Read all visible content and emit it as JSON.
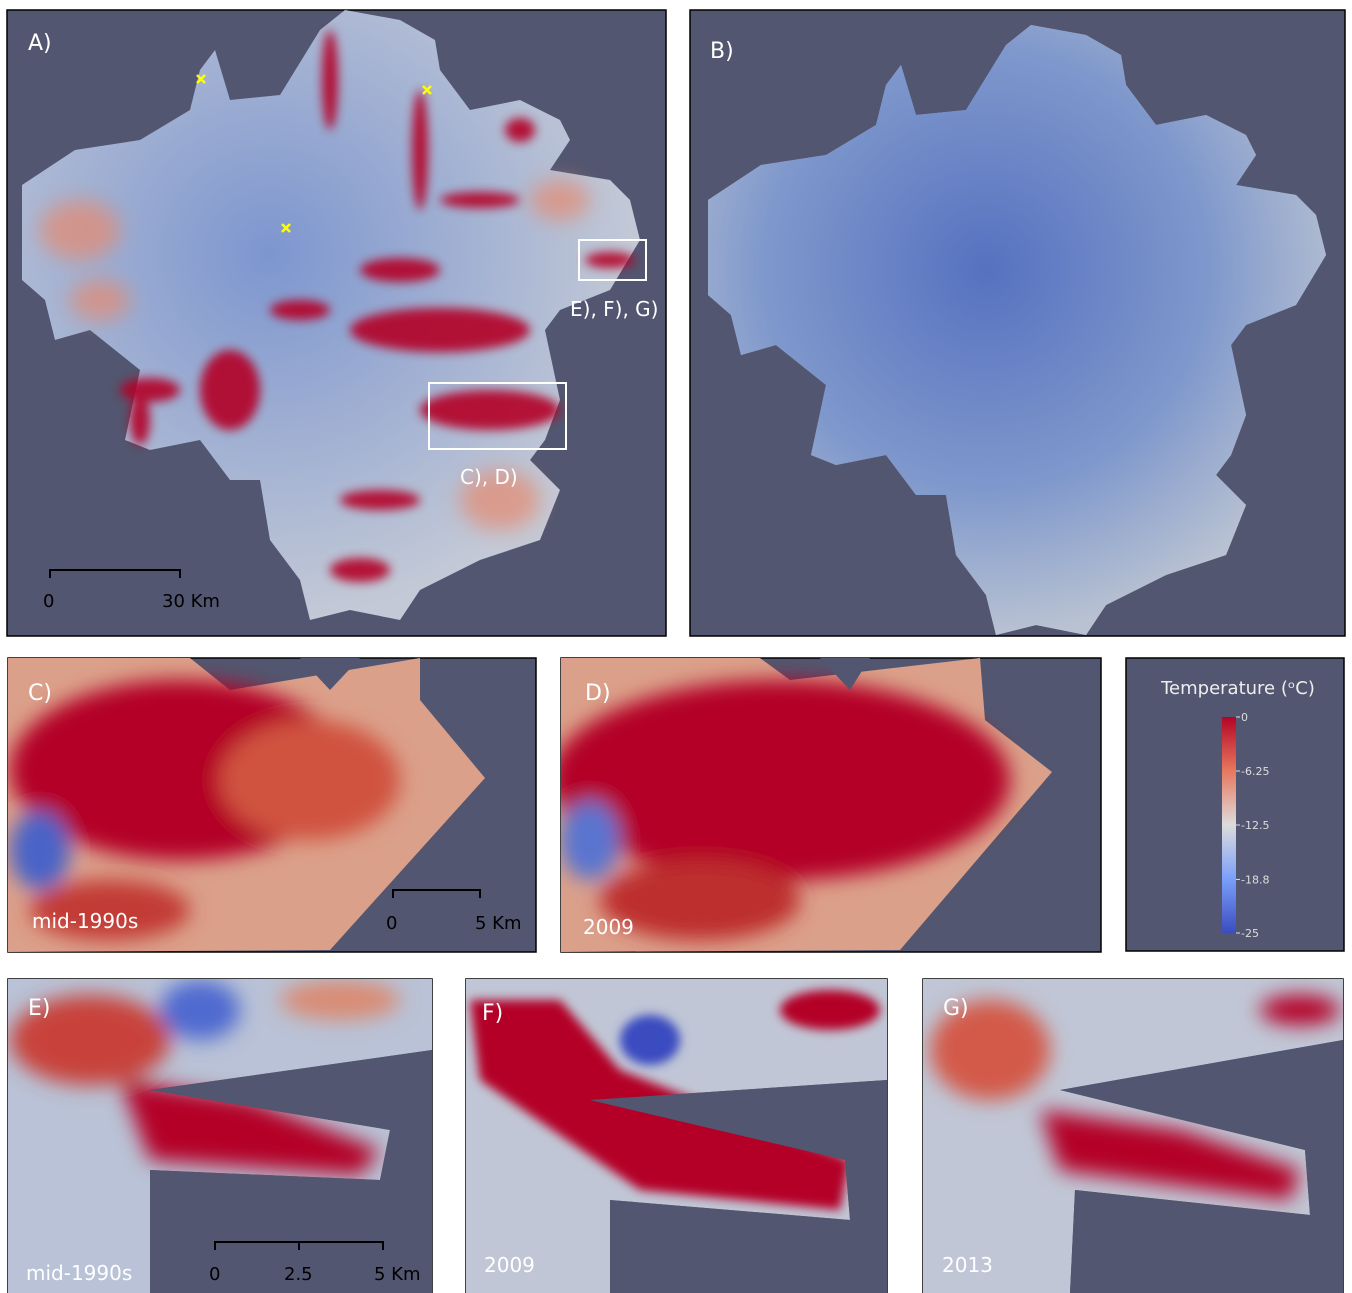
{
  "panels": [
    {
      "label": "A)",
      "annotations": [
        "E), F), G)",
        "C), D)"
      ],
      "scale_bar": [
        "0",
        "30 Km"
      ]
    },
    {
      "label": "B)"
    },
    {
      "label": "C)",
      "caption": "mid-1990s",
      "scale_bar": [
        "0",
        "5 Km"
      ]
    },
    {
      "label": "D)",
      "caption": "2009"
    },
    {
      "label": "E)",
      "caption": "mid-1990s",
      "scale_bar": [
        "0",
        "2.5",
        "5 Km"
      ]
    },
    {
      "label": "F)",
      "caption": "2009"
    },
    {
      "label": "G)",
      "caption": "2013"
    }
  ],
  "colorbar": {
    "title": "Temperature (ᵒC)",
    "ticks": [
      0,
      -6.25,
      -12.5,
      -18.8,
      -25
    ]
  }
}
